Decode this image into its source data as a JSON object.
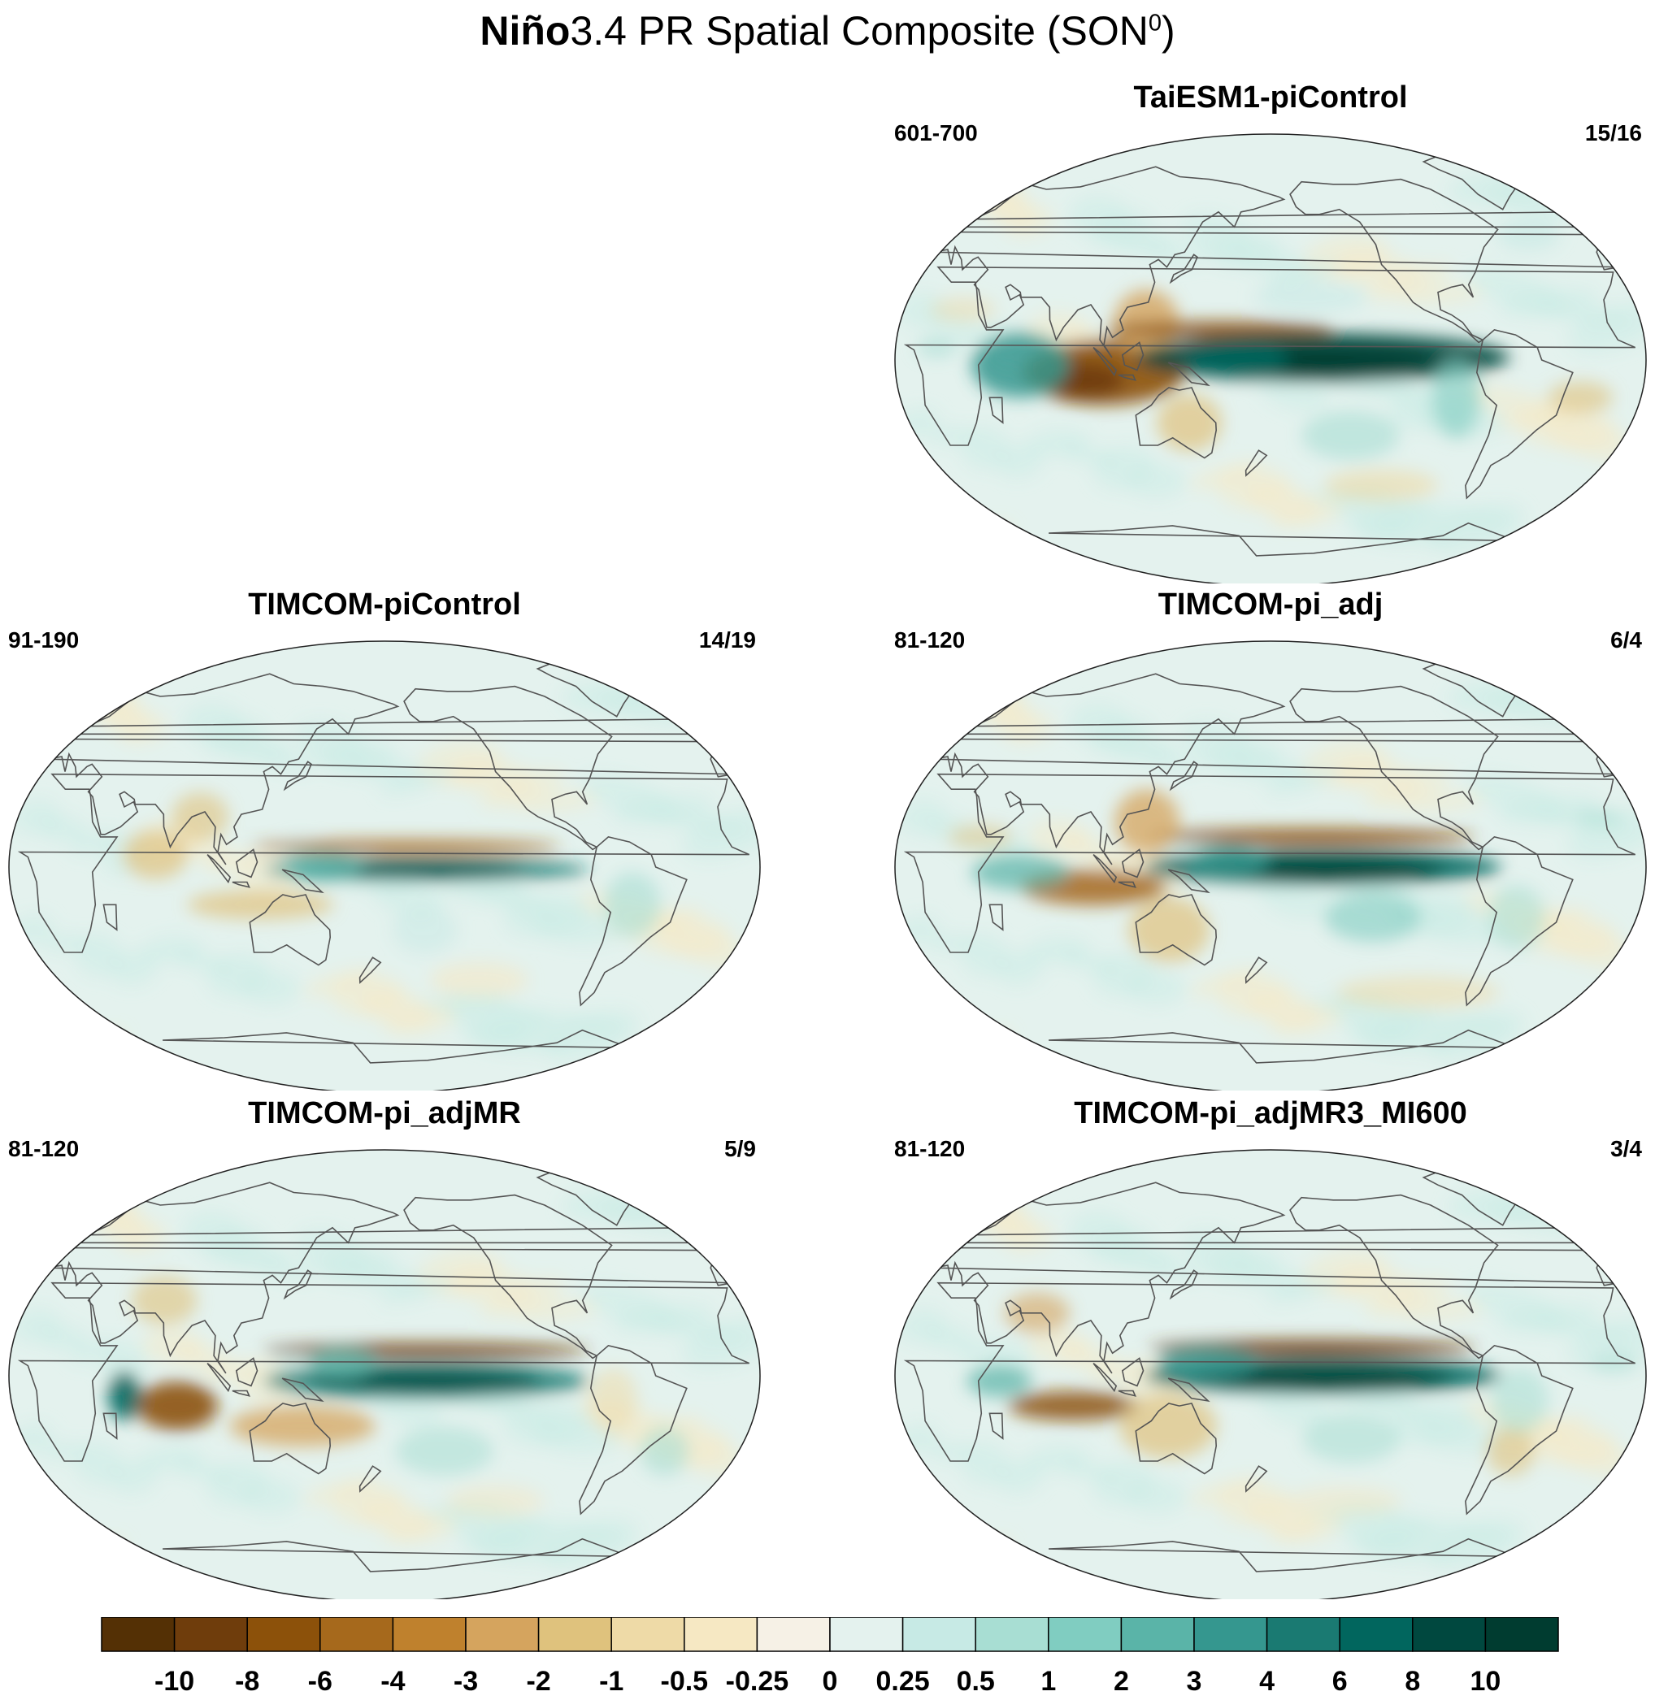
{
  "figure": {
    "title_bold": "Niño",
    "title_rest": "3.4 PR Spatial Composite (SON",
    "title_sup": "0",
    "title_close": ")"
  },
  "panels": [
    {
      "title": "TaiESM1-piControl",
      "years": "601-700",
      "count": "15/16"
    },
    {
      "title": "TIMCOM-piControl",
      "years": "91-190",
      "count": "14/19"
    },
    {
      "title": "TIMCOM-pi_adj",
      "years": "81-120",
      "count": "6/4"
    },
    {
      "title": "TIMCOM-pi_adjMR",
      "years": "81-120",
      "count": "5/9"
    },
    {
      "title": "TIMCOM-pi_adjMR3_MI600",
      "years": "81-120",
      "count": "3/4"
    }
  ],
  "colorbar": {
    "levels": [
      "-10",
      "-8",
      "-6",
      "-4",
      "-3",
      "-2",
      "-1",
      "-0.5",
      "-0.25",
      "0",
      "0.25",
      "0.5",
      "1",
      "2",
      "3",
      "4",
      "6",
      "8",
      "10"
    ],
    "colors": [
      "#543005",
      "#6f3d0c",
      "#8c510a",
      "#a6691c",
      "#bf812d",
      "#d5a45e",
      "#dfc27d",
      "#eedaa7",
      "#f6e8c3",
      "#f6f1e6",
      "#e4f2ee",
      "#c7eae5",
      "#a8ded3",
      "#80cdc1",
      "#5ab4a8",
      "#35978f",
      "#1a7a72",
      "#01665e",
      "#00483f",
      "#003c30"
    ]
  },
  "map": {
    "projection": "robinson",
    "center_longitude": "180E",
    "land_outline_color": "#555555"
  }
}
